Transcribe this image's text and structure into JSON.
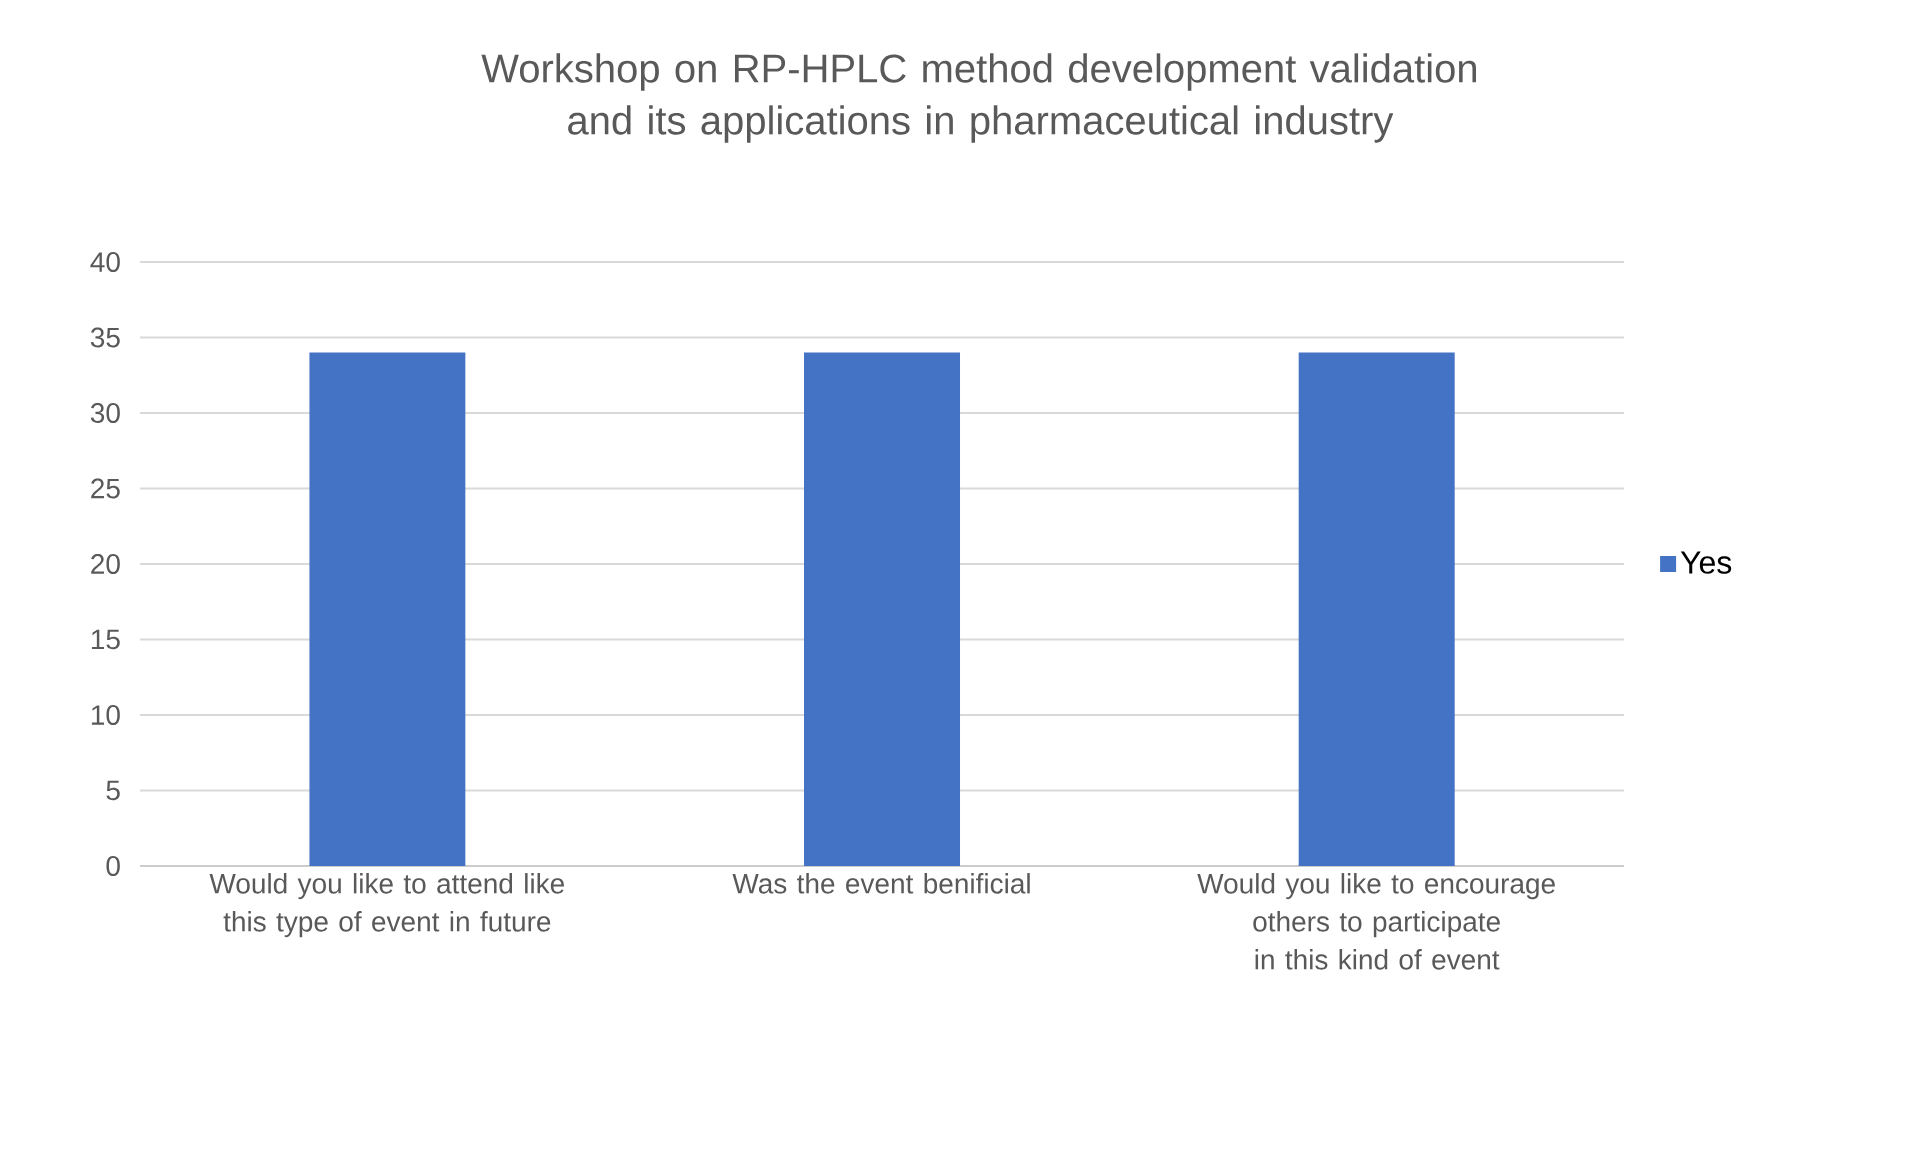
{
  "chart_data": {
    "type": "bar",
    "title": "Workshop on RP-HPLC method development validation and its applications in pharmaceutical industry",
    "categories": [
      "Would you like to attend like this type of event in future",
      "Was the event benificial",
      "Would you like to encourage others to participate in this kind of event"
    ],
    "series": [
      {
        "name": "Yes",
        "color": "#4472c4",
        "values": [
          34,
          34,
          34
        ]
      }
    ],
    "ylim": [
      0,
      40
    ],
    "yticks": [
      0,
      5,
      10,
      15,
      20,
      25,
      30,
      35,
      40
    ],
    "grid": "y",
    "legend": "right"
  }
}
